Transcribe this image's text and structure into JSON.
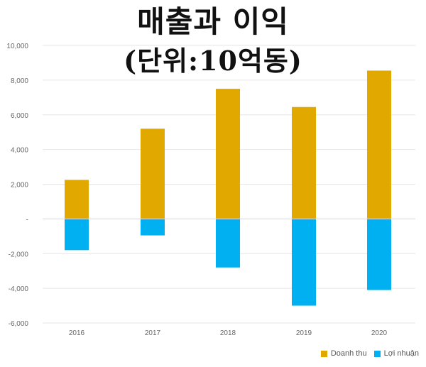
{
  "title": {
    "line1": "매출과 이익",
    "line2": "(단위:10억동)"
  },
  "colors": {
    "revenue": "#e1a800",
    "profit": "#00b0f0",
    "grid": "#e6e6e6",
    "axis_text": "#666666"
  },
  "chart_data": {
    "type": "bar",
    "categories": [
      "2016",
      "2017",
      "2018",
      "2019",
      "2020"
    ],
    "series": [
      {
        "name": "Doanh thu",
        "values": [
          2250,
          5200,
          7500,
          6450,
          8550
        ]
      },
      {
        "name": "Lợi nhuận",
        "values": [
          -1800,
          -950,
          -2800,
          -5000,
          -4100
        ]
      }
    ],
    "y_ticks": [
      "10,000",
      "8,000",
      "6,000",
      "4,000",
      "2,000",
      "-",
      "-2,000",
      "-4,000",
      "-6,000"
    ],
    "ylim": [
      -6000,
      10000
    ],
    "grid": true,
    "legend_position": "bottom-right",
    "title": "매출과 이익 (단위:10억동)"
  }
}
